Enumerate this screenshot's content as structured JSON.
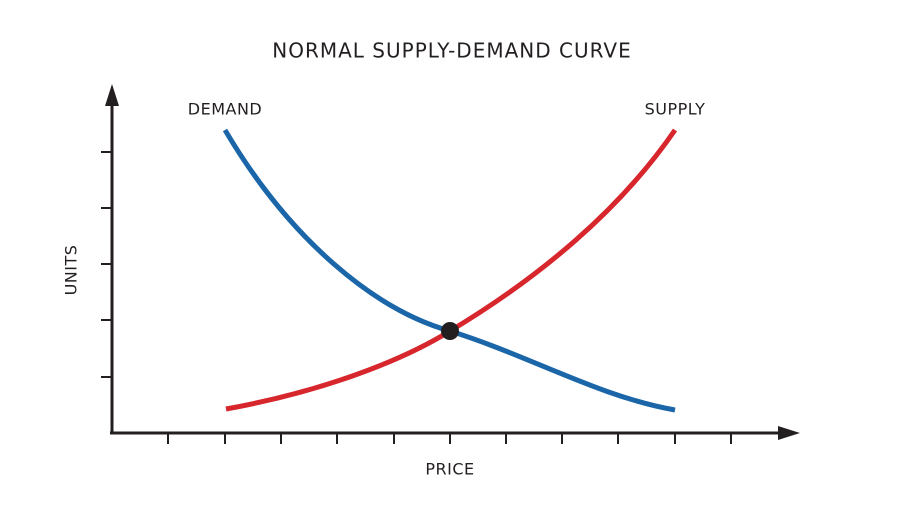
{
  "title": "NORMAL SUPPLY-DEMAND CURVE",
  "x_axis": {
    "label": "PRICE"
  },
  "y_axis": {
    "label": "UNITS"
  },
  "curves": [
    {
      "label": "DEMAND"
    },
    {
      "label": "SUPPLY"
    }
  ]
}
